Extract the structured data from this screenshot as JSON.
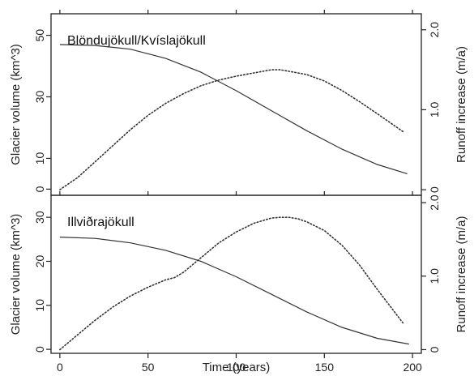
{
  "chart_data": [
    {
      "type": "line",
      "title": "Blöndujökull/Kvíslajökull",
      "xlabel": "",
      "ylabel": "Glacier volume (km^3)",
      "y2label": "Runoff increase (m/a)",
      "xlim": [
        -5,
        205
      ],
      "ylim": [
        -2,
        57
      ],
      "y2lim": [
        -0.07,
        2.2
      ],
      "yticks": [
        0,
        10,
        30,
        50
      ],
      "y2ticks": [
        0,
        1.0,
        2.0
      ],
      "y2tick_labels": [
        "0",
        "1.0",
        "2.0"
      ],
      "series": [
        {
          "axis": "left",
          "style": "solid",
          "x": [
            0,
            20,
            40,
            60,
            80,
            100,
            120,
            140,
            160,
            180,
            197
          ],
          "y": [
            47,
            46.7,
            45.5,
            42.5,
            38,
            32,
            25.5,
            19,
            13,
            8,
            5
          ]
        },
        {
          "axis": "right",
          "style": "dotted",
          "x": [
            0,
            10,
            20,
            30,
            40,
            50,
            60,
            70,
            80,
            90,
            100,
            110,
            120,
            125,
            130,
            140,
            150,
            160,
            170,
            180,
            195
          ],
          "y": [
            0,
            0.15,
            0.35,
            0.55,
            0.75,
            0.93,
            1.08,
            1.2,
            1.3,
            1.37,
            1.42,
            1.46,
            1.5,
            1.5,
            1.48,
            1.44,
            1.36,
            1.24,
            1.1,
            0.95,
            0.72
          ]
        }
      ]
    },
    {
      "type": "line",
      "title": "Illviðrajökull",
      "xlabel": "Time (years)",
      "ylabel": "Glacier volume (km^3)",
      "y2label": "Runoff increase (m/a)",
      "xlim": [
        -5,
        205
      ],
      "ylim": [
        -0.9,
        35
      ],
      "y2lim": [
        -0.05,
        2.1
      ],
      "xticks": [
        0,
        50,
        100,
        150,
        200
      ],
      "yticks": [
        0,
        10,
        20,
        30
      ],
      "y2ticks": [
        0,
        1.0,
        2.0
      ],
      "y2tick_labels": [
        "0",
        "1.0",
        "2.0"
      ],
      "series": [
        {
          "axis": "left",
          "style": "solid",
          "x": [
            0,
            20,
            40,
            60,
            80,
            100,
            120,
            140,
            160,
            180,
            198
          ],
          "y": [
            25.5,
            25.2,
            24.2,
            22.5,
            20,
            16.5,
            12.5,
            8.5,
            5,
            2.5,
            1.2
          ]
        },
        {
          "axis": "right",
          "style": "dotted",
          "x": [
            0,
            10,
            20,
            30,
            40,
            50,
            60,
            65,
            70,
            80,
            90,
            100,
            110,
            120,
            125,
            130,
            135,
            140,
            150,
            160,
            170,
            180,
            195
          ],
          "y": [
            0,
            0.2,
            0.4,
            0.58,
            0.73,
            0.85,
            0.95,
            0.98,
            1.05,
            1.25,
            1.45,
            1.6,
            1.72,
            1.79,
            1.8,
            1.8,
            1.78,
            1.74,
            1.62,
            1.42,
            1.15,
            0.82,
            0.35
          ]
        }
      ]
    }
  ]
}
